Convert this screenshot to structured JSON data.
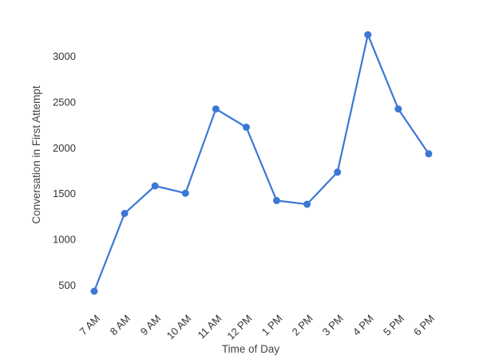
{
  "chart_data": {
    "type": "line",
    "title": "",
    "xlabel": "Time of Day",
    "ylabel": "Conversation in First Attempt",
    "categories": [
      "7 AM",
      "8 AM",
      "9 AM",
      "10 AM",
      "11 AM",
      "12 PM",
      "1 PM",
      "2 PM",
      "3 PM",
      "4 PM",
      "5 PM",
      "6 PM"
    ],
    "series": [
      {
        "values": [
          430,
          1280,
          1580,
          1500,
          2420,
          2220,
          1420,
          1380,
          1730,
          3230,
          2420,
          1930
        ]
      }
    ],
    "yticks": [
      500,
      1000,
      1500,
      2000,
      2500,
      3000
    ],
    "ylim": [
      400,
      3250
    ],
    "grid": false,
    "legend": "none",
    "colors": {
      "line": "#3a78d4",
      "marker": "#3a78d4",
      "text": "#333333"
    }
  }
}
